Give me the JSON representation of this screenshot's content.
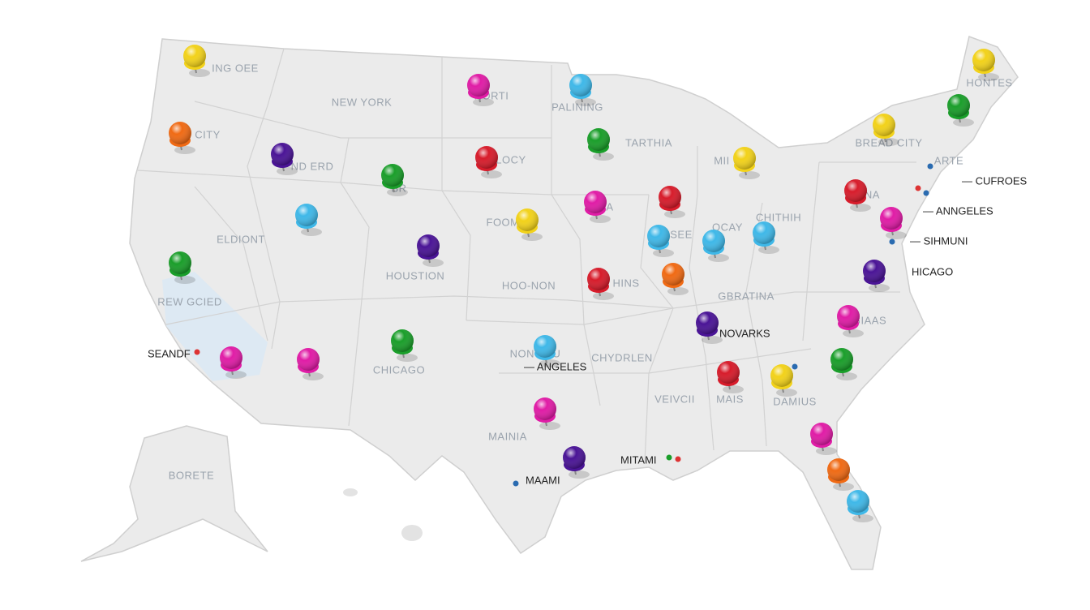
{
  "region_labels": [
    "ING OEE",
    "NEW YORK",
    "NORTI",
    "PALINING",
    "CITY",
    "TARTHIA",
    "ND ERD",
    "LOCY",
    "BREAD CITY",
    "HONTES",
    "ARTE",
    "MII",
    "BR",
    "IGNA",
    "FOOM",
    "UIA",
    "ELDIONT",
    "HOUSTION",
    "HOO-NON",
    "HINS",
    "SEE",
    "OCAY",
    "CHITHIH",
    "REW GCIED",
    "GBRATINA",
    "NON VEU",
    "CHYDRLEN",
    "CHICAGO",
    "VEIVCII",
    "MAIS",
    "DAMIUS",
    "MAINIA",
    "BORETE",
    "GIAAS"
  ],
  "city_labels": [
    "— CUFROES",
    "— ANNGELES",
    "— SIHMUNI",
    "HICAGO",
    "NOVARKS",
    "— ANGELES",
    "MITAMI",
    "MAAMI",
    "SEANDF"
  ]
}
